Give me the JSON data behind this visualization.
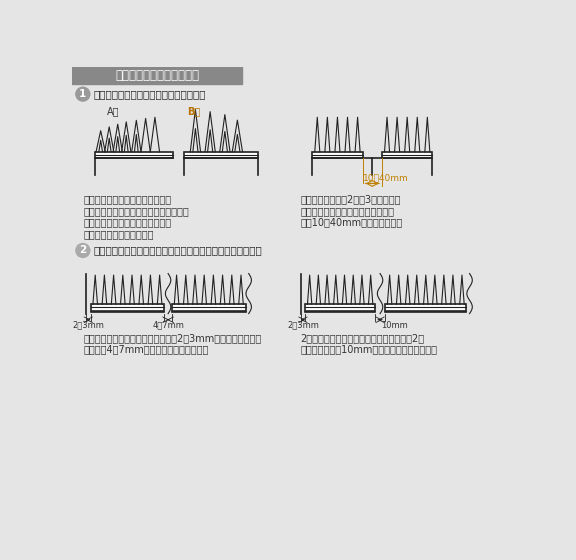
{
  "bg_color": "#e5e5e5",
  "header_bg": "#888888",
  "header_text": "取付方法と、取付上の注意",
  "header_text_color": "#ffffff",
  "line_color": "#222222",
  "blue_text_color": "#c08000",
  "circle1_color": "#999999",
  "circle2_color": "#aaaaaa",
  "circle1_text": "1",
  "step1_title": "本体は鳥が飛来してくる側に並べます。",
  "label_A": "A型",
  "label_B": "B型",
  "dim_label": "10〜40mm",
  "text1_left": "本体の向きは、本体連結部が鳥の\n飛来する側に来ないようにして下さい。\n本体は鳥の飛来する場所の端いっ\nぱいに取り付けて下さい。",
  "text1_right": "奥行が広いときは2列、3列と取り付\nけても構いません。そのときの列間\n隔は10〜40mmにして下さい。",
  "circle2_text": "2",
  "step2_title": "本体は熱膨張しますので、並べる時は間隔をあけて下さい。",
  "dim_left1": "2〜3mm",
  "dim_left2": "4〜7mm",
  "dim_right1": "2〜3mm",
  "dim_right2": "10mm",
  "text2_left": "本体を並べ始めるときは、建物より2〜3mm離して取り付け、\n本体間は4〜7mmの間隔をとって下さい。",
  "text2_right": "2枚連結して本体を使用するときは、次の2枚\n連結との間に約10mmの間隔をとって下さい。"
}
